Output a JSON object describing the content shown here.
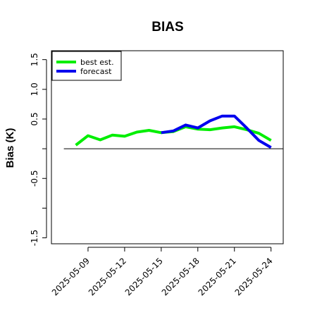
{
  "chart_data": {
    "type": "line",
    "title": "BIAS",
    "ylabel": "Bias (K)",
    "xlabel": "",
    "ylim": [
      -1.6,
      1.65
    ],
    "xlim": [
      "2025-05-06",
      "2025-05-25"
    ],
    "y_ticks": [
      {
        "value": -1.5,
        "label": "-1.5"
      },
      {
        "value": -1.0,
        "label": ""
      },
      {
        "value": -0.5,
        "label": "-0.5"
      },
      {
        "value": 0.0,
        "label": ""
      },
      {
        "value": 0.5,
        "label": "0.5"
      },
      {
        "value": 1.0,
        "label": "1.0"
      },
      {
        "value": 1.5,
        "label": "1.5"
      }
    ],
    "x_ticks": [
      {
        "date": "2025-05-09",
        "label": "2025-05-09",
        "color": "#000000"
      },
      {
        "date": "2025-05-12",
        "label": "2025-05-12",
        "color": "#000000"
      },
      {
        "date": "2025-05-15",
        "label": "2025-05-15",
        "color": "#008000"
      },
      {
        "date": "2025-05-18",
        "label": "2025-05-18",
        "color": "#000000"
      },
      {
        "date": "2025-05-21",
        "label": "2025-05-21",
        "color": "#000000"
      },
      {
        "date": "2025-05-24",
        "label": "2025-05-24",
        "color": "#000000"
      }
    ],
    "reference_line": 0.0,
    "legend": {
      "position": "top-left"
    },
    "series": [
      {
        "name": "best est.",
        "color": "#00ee00",
        "x": [
          "2025-05-08",
          "2025-05-09",
          "2025-05-10",
          "2025-05-11",
          "2025-05-12",
          "2025-05-13",
          "2025-05-14",
          "2025-05-15",
          "2025-05-16",
          "2025-05-17",
          "2025-05-18",
          "2025-05-19",
          "2025-05-20",
          "2025-05-21",
          "2025-05-22",
          "2025-05-23",
          "2025-05-24"
        ],
        "values": [
          0.06,
          0.22,
          0.15,
          0.23,
          0.21,
          0.28,
          0.31,
          0.27,
          0.29,
          0.37,
          0.33,
          0.32,
          0.35,
          0.37,
          0.32,
          0.26,
          0.14
        ]
      },
      {
        "name": "forecast",
        "color": "#0000ee",
        "x": [
          "2025-05-15",
          "2025-05-16",
          "2025-05-17",
          "2025-05-18",
          "2025-05-19",
          "2025-05-20",
          "2025-05-21",
          "2025-05-22",
          "2025-05-23",
          "2025-05-24"
        ],
        "values": [
          0.27,
          0.3,
          0.4,
          0.35,
          0.47,
          0.55,
          0.55,
          0.35,
          0.14,
          0.02
        ]
      }
    ]
  }
}
